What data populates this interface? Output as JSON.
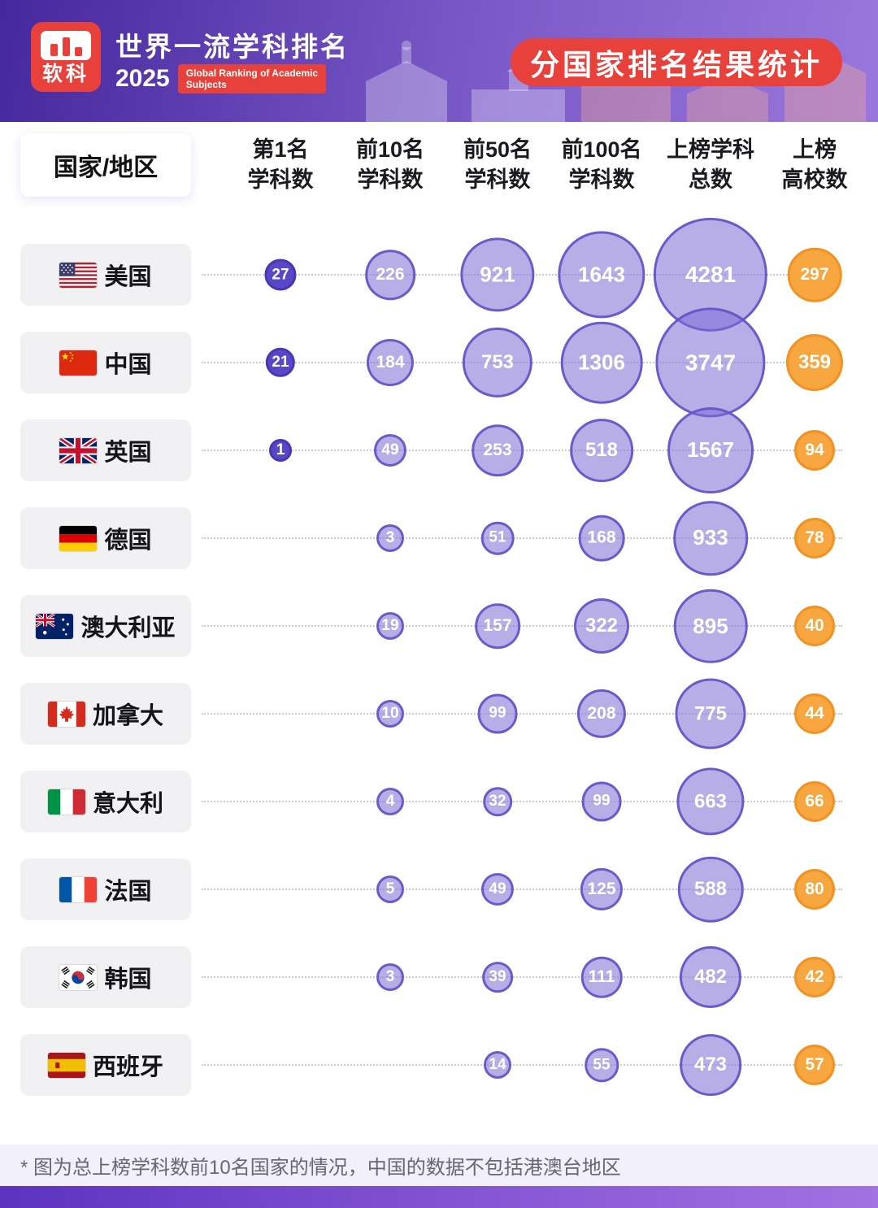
{
  "header": {
    "logo_text": "软科",
    "title": "世界一流学科排名",
    "year": "2025",
    "subtitle": "Global Ranking of Academic\nSubjects",
    "badge": "分国家排名结果统计"
  },
  "table": {
    "country_header": "国家/地区",
    "col_headers": [
      "第1名\n学科数",
      "前10名\n学科数",
      "前50名\n学科数",
      "前100名\n学科数",
      "上榜学科\n总数",
      "上榜\n高校数"
    ]
  },
  "footer": {
    "note": "* 图为总上榜学科数前10名国家的情况，中国的数据不包括港澳台地区"
  },
  "colors": {
    "red": "#e8413b",
    "header_gradient": [
      "#46289e",
      "#7b5ac8",
      "#9a77dc"
    ],
    "bubble_purple_fill": "#7c6bd5",
    "bubble_purple_stroke": "#6552c9",
    "bubble_dark": "#5847c6",
    "bubble_orange": "#f8a63f",
    "country_box_bg": "#f1f1f4"
  },
  "chart_data": {
    "type": "bubble",
    "title": "分国家排名结果统计",
    "columns": [
      "第1名学科数",
      "前10名学科数",
      "前50名学科数",
      "前100名学科数",
      "上榜学科总数",
      "上榜高校数"
    ],
    "rows": [
      {
        "country": "美国",
        "flag": "us",
        "values": [
          27,
          226,
          921,
          1643,
          4281,
          297
        ]
      },
      {
        "country": "中国",
        "flag": "cn",
        "values": [
          21,
          184,
          753,
          1306,
          3747,
          359
        ]
      },
      {
        "country": "英国",
        "flag": "gb",
        "values": [
          1,
          49,
          253,
          518,
          1567,
          94
        ]
      },
      {
        "country": "德国",
        "flag": "de",
        "values": [
          null,
          3,
          51,
          168,
          933,
          78
        ]
      },
      {
        "country": "澳大利亚",
        "flag": "au",
        "values": [
          null,
          19,
          157,
          322,
          895,
          40
        ]
      },
      {
        "country": "加拿大",
        "flag": "ca",
        "values": [
          null,
          10,
          99,
          208,
          775,
          44
        ]
      },
      {
        "country": "意大利",
        "flag": "it",
        "values": [
          null,
          4,
          32,
          99,
          663,
          66
        ]
      },
      {
        "country": "法国",
        "flag": "fr",
        "values": [
          null,
          5,
          49,
          125,
          588,
          80
        ]
      },
      {
        "country": "韩国",
        "flag": "kr",
        "values": [
          null,
          3,
          39,
          111,
          482,
          42
        ]
      },
      {
        "country": "西班牙",
        "flag": "es",
        "values": [
          null,
          null,
          14,
          55,
          473,
          57
        ]
      }
    ],
    "note": "* 图为总上榜学科数前10名国家的情况，中国的数据不包括港澳台地区"
  }
}
